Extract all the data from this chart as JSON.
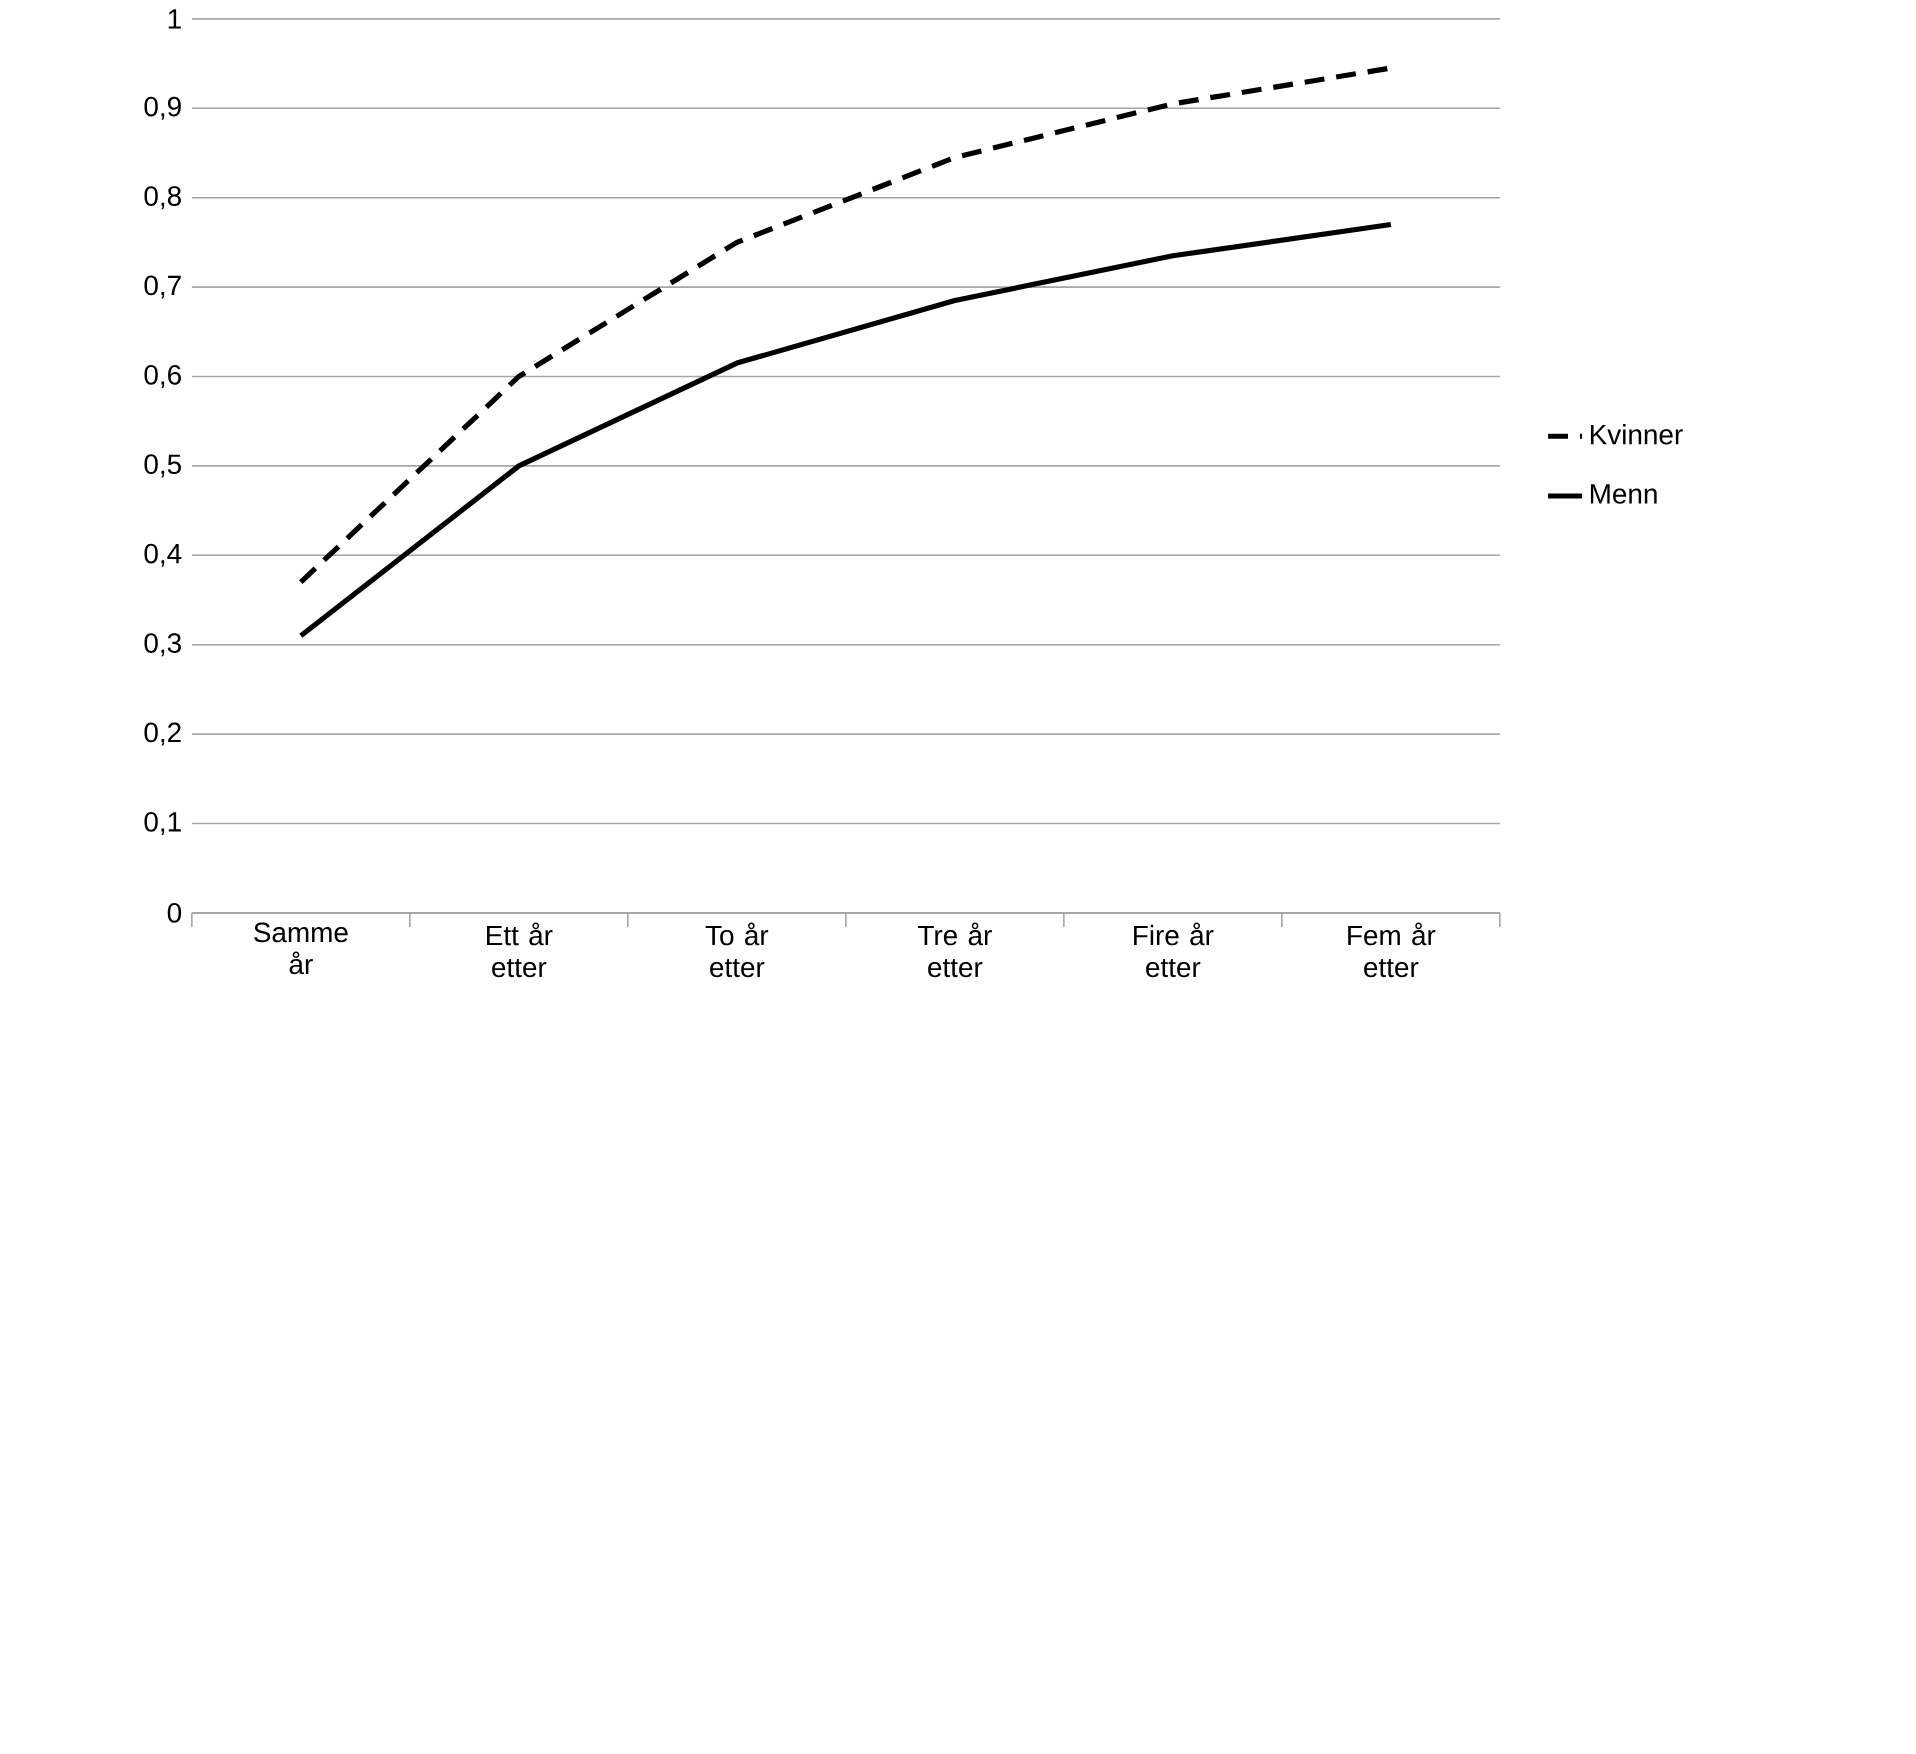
{
  "chart_data": {
    "type": "line",
    "categories": [
      "Samme år",
      "Ett år etter",
      "To år etter",
      "Tre år etter",
      "Fire år etter",
      "Fem år etter"
    ],
    "series": [
      {
        "name": "Kvinner",
        "color": "#000000",
        "line_style": "dashed",
        "values": [
          0.37,
          0.6,
          0.75,
          0.845,
          0.905,
          0.945
        ]
      },
      {
        "name": "Menn",
        "color": "#000000",
        "line_style": "solid",
        "values": [
          0.31,
          0.5,
          0.615,
          0.685,
          0.735,
          0.77
        ]
      }
    ],
    "ylim": [
      0,
      1
    ],
    "yticks": [
      0,
      {
        "value": 0.1,
        "label": "0,1"
      },
      {
        "value": 0.2,
        "label": "0,2"
      },
      {
        "value": 0.3,
        "label": "0,3"
      },
      {
        "value": 0.4,
        "label": "0,4"
      },
      {
        "value": 0.5,
        "label": "0,5"
      },
      {
        "value": 0.6,
        "label": "0,6"
      },
      {
        "value": 0.7,
        "label": "0,7"
      },
      {
        "value": 0.8,
        "label": "0,8"
      },
      {
        "value": 0.9,
        "label": "0,9"
      },
      1
    ],
    "grid": "y",
    "legend": "right",
    "marker": "none"
  }
}
